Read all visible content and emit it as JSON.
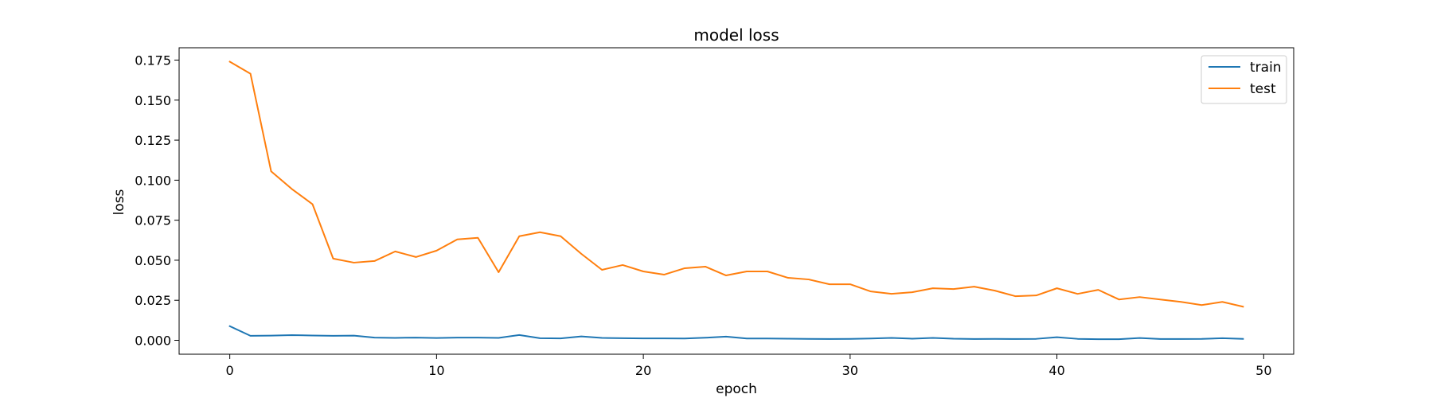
{
  "chart_data": {
    "type": "line",
    "title": "model loss",
    "xlabel": "epoch",
    "ylabel": "loss",
    "xlim": [
      -2.45,
      51.45
    ],
    "ylim": [
      -0.0087,
      0.1827
    ],
    "x_ticks": [
      0,
      10,
      20,
      30,
      40,
      50
    ],
    "y_ticks": [
      0.0,
      0.025,
      0.05,
      0.075,
      0.1,
      0.125,
      0.15,
      0.175
    ],
    "y_tick_labels": [
      "0.000",
      "0.025",
      "0.050",
      "0.075",
      "0.100",
      "0.125",
      "0.150",
      "0.175"
    ],
    "grid": false,
    "legend_position": "top-right",
    "x": [
      0,
      1,
      2,
      3,
      4,
      5,
      6,
      7,
      8,
      9,
      10,
      11,
      12,
      13,
      14,
      15,
      16,
      17,
      18,
      19,
      20,
      21,
      22,
      23,
      24,
      25,
      26,
      27,
      28,
      29,
      30,
      31,
      32,
      33,
      34,
      35,
      36,
      37,
      38,
      39,
      40,
      41,
      42,
      43,
      44,
      45,
      46,
      47,
      48,
      49
    ],
    "series": [
      {
        "name": "train",
        "color": "#1f77b4",
        "values": [
          0.0088,
          0.0028,
          0.0029,
          0.0032,
          0.003,
          0.0028,
          0.0029,
          0.0017,
          0.0015,
          0.0017,
          0.0014,
          0.0017,
          0.0017,
          0.0015,
          0.0033,
          0.0013,
          0.0012,
          0.0024,
          0.0015,
          0.0013,
          0.0012,
          0.0012,
          0.0011,
          0.0016,
          0.0023,
          0.0011,
          0.0011,
          0.001,
          0.0009,
          0.0008,
          0.0009,
          0.0011,
          0.0015,
          0.001,
          0.0015,
          0.001,
          0.0008,
          0.0009,
          0.0008,
          0.0009,
          0.0019,
          0.0009,
          0.0007,
          0.0007,
          0.0014,
          0.0008,
          0.0008,
          0.0009,
          0.0013,
          0.0009
        ]
      },
      {
        "name": "test",
        "color": "#ff7f0e",
        "values": [
          0.174,
          0.1665,
          0.1055,
          0.0945,
          0.085,
          0.051,
          0.0485,
          0.0495,
          0.0555,
          0.052,
          0.056,
          0.063,
          0.064,
          0.0425,
          0.065,
          0.0675,
          0.065,
          0.054,
          0.044,
          0.047,
          0.043,
          0.041,
          0.045,
          0.046,
          0.0405,
          0.043,
          0.043,
          0.039,
          0.038,
          0.035,
          0.035,
          0.0305,
          0.029,
          0.03,
          0.0325,
          0.032,
          0.0335,
          0.031,
          0.0275,
          0.028,
          0.0325,
          0.029,
          0.0315,
          0.0255,
          0.027,
          0.0255,
          0.024,
          0.022,
          0.024,
          0.021
        ]
      }
    ]
  }
}
